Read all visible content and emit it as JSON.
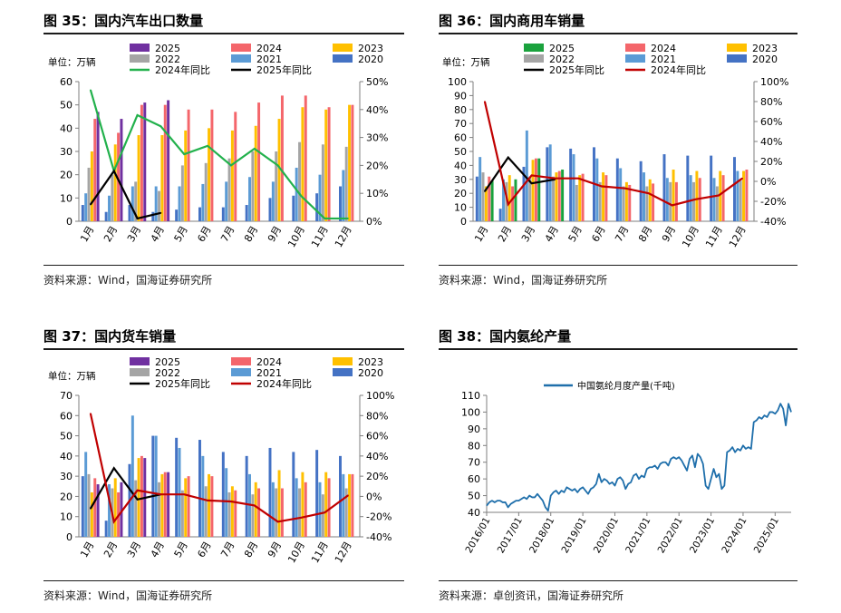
{
  "panels": [
    {
      "title": "图 35：国内汽车出口数量",
      "source": "资料来源：Wind，国海证券研究所",
      "unit": "单位：万辆",
      "chart_data": {
        "type": "bar",
        "categories": [
          "1月",
          "2月",
          "3月",
          "4月",
          "5月",
          "6月",
          "7月",
          "8月",
          "9月",
          "10月",
          "11月",
          "12月"
        ],
        "ylim_left": [
          0,
          60
        ],
        "yticks_left": [
          0,
          10,
          20,
          30,
          40,
          50,
          60
        ],
        "ylim_right": [
          0,
          50
        ],
        "yticks_right": [
          0,
          10,
          20,
          30,
          40,
          50
        ],
        "right_unit": "%",
        "legend": "top",
        "series": [
          {
            "name": "2020",
            "kind": "bar",
            "color": "#4472c4",
            "values": [
              7,
              4,
              7,
              4,
              5,
              6,
              6,
              7,
              10,
              11,
              12,
              15
            ]
          },
          {
            "name": "2021",
            "kind": "bar",
            "color": "#5b9bd5",
            "values": [
              12,
              11,
              15,
              15,
              15,
              16,
              17,
              19,
              17,
              23,
              20,
              22
            ]
          },
          {
            "name": "2022",
            "kind": "bar",
            "color": "#a5a5a5",
            "values": [
              23,
              20,
              17,
              13,
              24,
              25,
              27,
              30,
              30,
              34,
              33,
              32
            ]
          },
          {
            "name": "2023",
            "kind": "bar",
            "color": "#ffc000",
            "values": [
              30,
              33,
              37,
              37,
              39,
              40,
              39,
              41,
              44,
              49,
              48,
              50
            ]
          },
          {
            "name": "2024",
            "kind": "bar",
            "color": "#f4666b",
            "values": [
              44,
              38,
              50,
              50,
              48,
              48,
              47,
              51,
              54,
              54,
              49,
              50
            ]
          },
          {
            "name": "2025",
            "kind": "bar",
            "color": "#7030a0",
            "values": [
              47,
              44,
              51,
              52,
              null,
              null,
              null,
              null,
              null,
              null,
              null,
              null
            ]
          },
          {
            "name": "2024年同比",
            "kind": "line",
            "axis": "right",
            "color": "#22b14c",
            "values": [
              47,
              18,
              38,
              34,
              24,
              27,
              20,
              26,
              20,
              9,
              1,
              1
            ]
          },
          {
            "name": "2025年同比",
            "kind": "line",
            "axis": "right",
            "color": "#000000",
            "values": [
              6,
              18,
              1,
              3,
              null,
              null,
              null,
              null,
              null,
              null,
              null,
              null
            ]
          }
        ]
      }
    },
    {
      "title": "图 36：国内商用车销量",
      "source": "资料来源：Wind，国海证券研究所",
      "unit": "单位：万辆",
      "chart_data": {
        "type": "bar",
        "categories": [
          "1月",
          "2月",
          "3月",
          "4月",
          "5月",
          "6月",
          "7月",
          "8月",
          "9月",
          "10月",
          "11月",
          "12月"
        ],
        "ylim_left": [
          0,
          100
        ],
        "yticks_left": [
          0,
          10,
          20,
          30,
          40,
          50,
          60,
          70,
          80,
          90,
          100
        ],
        "ylim_right": [
          -40,
          100
        ],
        "yticks_right": [
          -40,
          -20,
          0,
          20,
          40,
          60,
          80,
          100
        ],
        "right_unit": "%",
        "legend": "top",
        "series": [
          {
            "name": "2020",
            "kind": "bar",
            "color": "#4472c4",
            "values": [
              32,
              9,
              39,
              53,
              52,
              53,
              45,
              43,
              48,
              47,
              47,
              46
            ]
          },
          {
            "name": "2021",
            "kind": "bar",
            "color": "#5b9bd5",
            "values": [
              46,
              30,
              65,
              55,
              48,
              45,
              38,
              35,
              31,
              33,
              31,
              36
            ]
          },
          {
            "name": "2022",
            "kind": "bar",
            "color": "#a5a5a5",
            "values": [
              35,
              28,
              32,
              32,
              26,
              28,
              25,
              25,
              28,
              28,
              25,
              29
            ]
          },
          {
            "name": "2023",
            "kind": "bar",
            "color": "#ffc000",
            "values": [
              25,
              33,
              44,
              35,
              33,
              35,
              28,
              30,
              37,
              36,
              36,
              36
            ]
          },
          {
            "name": "2024",
            "kind": "bar",
            "color": "#f4666b",
            "values": [
              32,
              25,
              45,
              36,
              34,
              33,
              26,
              27,
              28,
              31,
              33,
              37
            ]
          },
          {
            "name": "2025",
            "kind": "bar",
            "color": "#1aa23d",
            "values": [
              29,
              30,
              45,
              37,
              null,
              null,
              null,
              null,
              null,
              null,
              null,
              null
            ]
          },
          {
            "name": "2025年同比",
            "kind": "line",
            "axis": "right",
            "color": "#000000",
            "values": [
              -10,
              24,
              -2,
              2,
              null,
              null,
              null,
              null,
              null,
              null,
              null,
              null
            ]
          },
          {
            "name": "2024年同比",
            "kind": "line",
            "axis": "right",
            "color": "#c00000",
            "values": [
              80,
              -23,
              6,
              3,
              3,
              -5,
              -7,
              -12,
              -24,
              -18,
              -14,
              3
            ]
          }
        ]
      }
    },
    {
      "title": "图 37：国内货车销量",
      "source": "资料来源：Wind，国海证券研究所",
      "unit": "单位：万辆",
      "chart_data": {
        "type": "bar",
        "categories": [
          "1月",
          "2月",
          "3月",
          "4月",
          "5月",
          "6月",
          "7月",
          "8月",
          "9月",
          "10月",
          "11月",
          "12月"
        ],
        "ylim_left": [
          0,
          70
        ],
        "yticks_left": [
          0,
          10,
          20,
          30,
          40,
          50,
          60,
          70
        ],
        "ylim_right": [
          -40,
          100
        ],
        "yticks_right": [
          -40,
          -20,
          0,
          20,
          40,
          60,
          80,
          100
        ],
        "right_unit": "%",
        "legend": "top",
        "series": [
          {
            "name": "2020",
            "kind": "bar",
            "color": "#4472c4",
            "values": [
              30,
              8,
              36,
              50,
              49,
              48,
              42,
              40,
              44,
              42,
              43,
              40
            ]
          },
          {
            "name": "2021",
            "kind": "bar",
            "color": "#5b9bd5",
            "values": [
              42,
              26,
              60,
              50,
              44,
              40,
              34,
              31,
              27,
              29,
              27,
              31
            ]
          },
          {
            "name": "2022",
            "kind": "bar",
            "color": "#a5a5a5",
            "values": [
              31,
              24,
              28,
              27,
              23,
              25,
              22,
              21,
              24,
              24,
              21,
              24
            ]
          },
          {
            "name": "2023",
            "kind": "bar",
            "color": "#ffc000",
            "values": [
              22,
              29,
              39,
              31,
              29,
              31,
              25,
              27,
              33,
              32,
              32,
              31
            ]
          },
          {
            "name": "2024",
            "kind": "bar",
            "color": "#f4666b",
            "values": [
              29,
              22,
              40,
              32,
              30,
              30,
              23,
              24,
              24,
              27,
              29,
              31
            ]
          },
          {
            "name": "2025",
            "kind": "bar",
            "color": "#7030a0",
            "values": [
              26,
              27,
              39,
              32,
              null,
              null,
              null,
              null,
              null,
              null,
              null,
              null
            ]
          },
          {
            "name": "2025年同比",
            "kind": "line",
            "axis": "right",
            "color": "#000000",
            "values": [
              -12,
              28,
              -3,
              2,
              null,
              null,
              null,
              null,
              null,
              null,
              null,
              null
            ]
          },
          {
            "name": "2024年同比",
            "kind": "line",
            "axis": "right",
            "color": "#c00000",
            "values": [
              82,
              -25,
              6,
              2,
              2,
              -4,
              -5,
              -9,
              -25,
              -21,
              -16,
              1
            ]
          }
        ]
      }
    },
    {
      "title": "图 38：国内氨纶产量",
      "source": "资料来源：卓创资讯，国海证券研究所",
      "chart_data": {
        "type": "line",
        "ylim": [
          40,
          110
        ],
        "yticks": [
          40,
          50,
          60,
          70,
          80,
          90,
          100,
          110
        ],
        "x_start": "2016-01",
        "x_end": "2025-03",
        "xticks": [
          "2016/01",
          "2017/01",
          "2018/01",
          "2019/01",
          "2020/01",
          "2021/01",
          "2022/01",
          "2023/01",
          "2024/01",
          "2025/01"
        ],
        "legend": "top",
        "series": [
          {
            "name": "中国氨纶月度产量(千吨)",
            "color": "#1f6fab",
            "values": [
              44,
              46,
              47,
              46,
              47,
              47,
              46,
              46,
              43,
              45,
              46,
              47,
              47,
              48,
              49,
              48,
              50,
              49,
              49,
              51,
              49,
              47,
              43,
              41,
              50,
              52,
              53,
              51,
              53,
              52,
              55,
              54,
              53,
              54,
              52,
              54,
              55,
              53,
              51,
              54,
              55,
              57,
              63,
              58,
              60,
              59,
              57,
              58,
              56,
              60,
              61,
              59,
              54,
              57,
              58,
              62,
              63,
              60,
              62,
              61,
              66,
              67,
              67,
              68,
              66,
              69,
              70,
              70,
              68,
              72,
              73,
              72,
              73,
              71,
              68,
              65,
              72,
              74,
              67,
              75,
              73,
              69,
              56,
              54,
              60,
              66,
              61,
              63,
              54,
              56,
              76,
              77,
              79,
              76,
              78,
              77,
              80,
              78,
              79,
              78,
              94,
              95,
              97,
              96,
              98,
              97,
              100,
              100,
              99,
              101,
              105,
              102,
              92,
              105,
              100
            ]
          }
        ]
      }
    }
  ]
}
